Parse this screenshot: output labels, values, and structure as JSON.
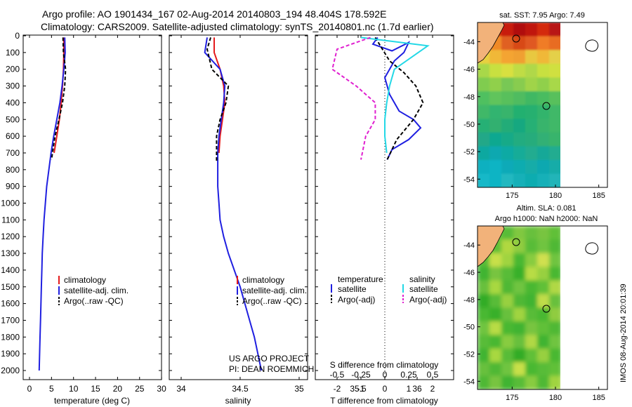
{
  "header": {
    "line1": "Argo profile: AO 1901434_167 02-Aug-2014 20140803_194 48.404S 178.592E",
    "line2": "Climatology: CARS2009. Satellite-adjusted climatology: synTS_20140801.nc (1.7d earlier)"
  },
  "depth_ticks": [
    "0",
    "100",
    "200",
    "300",
    "400",
    "500",
    "600",
    "700",
    "800",
    "900",
    "1000",
    "1100",
    "1200",
    "1300",
    "1400",
    "1500",
    "1600",
    "1700",
    "1800",
    "1900",
    "2000"
  ],
  "credits": {
    "project": "US ARGO PROJECT",
    "pi": "PI: DEAN ROEMMICH"
  },
  "timestamp": "IMOS 08-Aug-2014 20:01:39",
  "colors": {
    "climatology": "#e41a1c",
    "satellite": "#1f1fe0",
    "argo": "#000000",
    "sal_satellite": "#22d8e6",
    "sal_argo": "#e020d0",
    "land": "#f2b27a"
  },
  "chart_data": [
    {
      "type": "line",
      "name": "temperature",
      "xlabel": "temperature (deg C)",
      "xticks": [
        "0",
        "5",
        "10",
        "15",
        "20",
        "25",
        "30"
      ],
      "xlim": [
        -1,
        31
      ],
      "ylim": [
        0,
        2050
      ],
      "legend": [
        "climatology",
        "satellite-adj. clim.",
        "Argo(..raw -QC)"
      ],
      "series": [
        {
          "name": "climatology",
          "x": [
            7.8,
            7.8,
            7.7,
            7.5,
            7.2,
            6.8,
            6.2,
            5.6
          ],
          "y": [
            10,
            100,
            200,
            300,
            400,
            500,
            600,
            700
          ]
        },
        {
          "name": "satellite-adj. clim.",
          "x": [
            8.0,
            8.1,
            7.8,
            7.4,
            6.9,
            6.2,
            5.5,
            4.9,
            4.4,
            3.9,
            3.6,
            3.3,
            3.1,
            2.9,
            2.8,
            2.7,
            2.6,
            2.5,
            2.4,
            2.3,
            2.2
          ],
          "y": [
            10,
            100,
            200,
            300,
            400,
            500,
            600,
            700,
            800,
            900,
            1000,
            1100,
            1200,
            1300,
            1400,
            1500,
            1600,
            1700,
            1800,
            1900,
            2000
          ]
        },
        {
          "name": "Argo(..raw -QC)",
          "x": [
            7.6,
            7.7,
            8.2,
            8.0,
            7.5,
            6.7,
            5.8,
            5.0
          ],
          "y": [
            10,
            100,
            200,
            300,
            400,
            500,
            600,
            740
          ]
        }
      ]
    },
    {
      "type": "line",
      "name": "salinity",
      "xlabel": "salinity",
      "xticks": [
        "34",
        "34.5",
        "35",
        "35.5",
        "36"
      ],
      "xlim": [
        33.8,
        36.1
      ],
      "ylim": [
        0,
        2050
      ],
      "legend": [
        "climatology",
        "satellite-adj. clim.",
        "Argo(..raw -QC)"
      ],
      "series": [
        {
          "name": "climatology",
          "x": [
            34.28,
            34.28,
            34.33,
            34.36,
            34.37,
            34.35,
            34.33,
            34.32
          ],
          "y": [
            10,
            100,
            200,
            300,
            400,
            500,
            600,
            700
          ]
        },
        {
          "name": "satellite-adj. clim.",
          "x": [
            34.22,
            34.2,
            34.33,
            34.37,
            34.36,
            34.34,
            34.32,
            34.31,
            34.31,
            34.31,
            34.32,
            34.33,
            34.36,
            34.4,
            34.45,
            34.5,
            34.54,
            34.58,
            34.62,
            34.65,
            34.68
          ],
          "y": [
            10,
            100,
            200,
            300,
            400,
            500,
            600,
            700,
            800,
            900,
            1000,
            1100,
            1200,
            1300,
            1400,
            1500,
            1600,
            1700,
            1800,
            1900,
            2000
          ]
        },
        {
          "name": "Argo(..raw -QC)",
          "x": [
            34.25,
            34.22,
            34.26,
            34.4,
            34.38,
            34.33,
            34.3,
            34.3
          ],
          "y": [
            10,
            80,
            200,
            300,
            400,
            500,
            600,
            750
          ]
        }
      ]
    },
    {
      "type": "line",
      "name": "difference",
      "xlabel": "T difference from climatology",
      "xlabel2": "S difference from climatology",
      "xticks_T": [
        "-2",
        "-1",
        "0",
        "1",
        "2"
      ],
      "xticks_S": [
        "-0.5",
        "-0.25",
        "0",
        "0.25",
        "0.5"
      ],
      "xlim": [
        -3,
        3
      ],
      "ylim": [
        0,
        2050
      ],
      "legend_headers": [
        "temperature",
        "salinity"
      ],
      "legend": [
        "satellite",
        "Argo(-adj)",
        "satellite",
        "Argo(-adj)"
      ],
      "series": [
        {
          "name": "satellite",
          "x": [
            -0.3,
            -0.5,
            0.3,
            1.0,
            0.8,
            0.4,
            0.0,
            0.2,
            0.6,
            1.2,
            1.5,
            1.0,
            0.3,
            0.1
          ],
          "y": [
            10,
            50,
            90,
            40,
            100,
            150,
            250,
            350,
            450,
            500,
            550,
            620,
            680,
            740
          ]
        },
        {
          "name": "Argo(-adj)",
          "x": [
            -0.4,
            0.2,
            0.8,
            1.3,
            1.6,
            1.2,
            0.5,
            0.1
          ],
          "y": [
            10,
            150,
            220,
            300,
            400,
            500,
            620,
            740
          ]
        },
        {
          "name": "sal satellite",
          "x": [
            -0.25,
            0.45,
            0.1,
            0.05,
            0.02,
            0.0,
            0.0,
            0.02
          ],
          "y": [
            10,
            60,
            200,
            300,
            400,
            500,
            600,
            700
          ]
        },
        {
          "name": "sal Argo(-adj)",
          "x": [
            -0.15,
            -0.5,
            -0.55,
            -0.3,
            -0.1,
            -0.1,
            -0.2,
            -0.25
          ],
          "y": [
            10,
            80,
            200,
            300,
            400,
            500,
            600,
            740
          ]
        }
      ]
    },
    {
      "type": "heatmap",
      "name": "sst-map",
      "title": "sat. SST: 7.95 Argo: 7.49",
      "xticks": [
        "175",
        "180",
        "185"
      ],
      "yticks": [
        "-44",
        "-46",
        "-48",
        "-50",
        "-52",
        "-54"
      ],
      "xlim": [
        171,
        186
      ],
      "ylim": [
        -54.6,
        -42.6
      ]
    },
    {
      "type": "heatmap",
      "name": "sla-map",
      "title": "Altim. SLA: 0.081",
      "subtitle": "Argo h1000: NaN h2000: NaN",
      "xticks": [
        "175",
        "180",
        "185"
      ],
      "yticks": [
        "-44",
        "-46",
        "-48",
        "-50",
        "-52",
        "-54"
      ],
      "xlim": [
        171,
        186
      ],
      "ylim": [
        -54.6,
        -42.6
      ]
    }
  ]
}
